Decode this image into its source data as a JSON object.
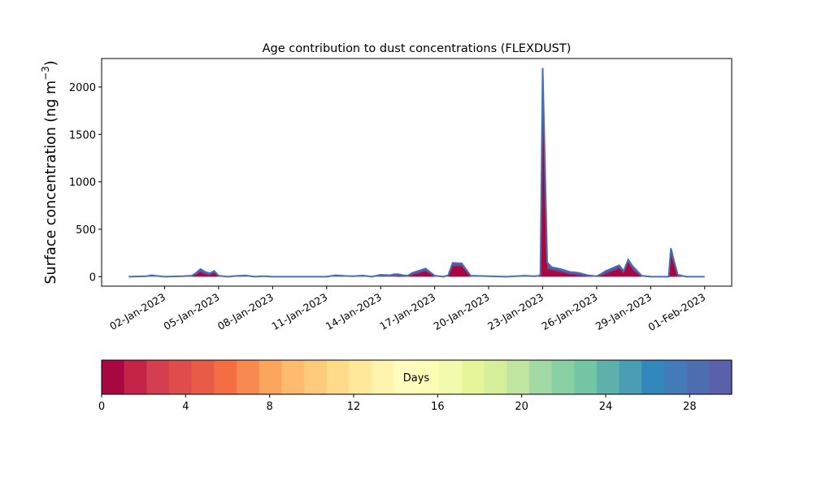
{
  "chart_data": {
    "type": "area",
    "title": "Age contribution to dust concentrations (FLEXDUST)",
    "ylabel": "Surface concentration (ng m",
    "ylabel_superscript": "−3",
    "ylabel_close": ")",
    "xlabel": "",
    "ylim": [
      -100,
      2300
    ],
    "yticks": [
      0,
      500,
      1000,
      1500,
      2000
    ],
    "xlim": [
      "2022-12-29T12:00",
      "2023-02-02T12:00"
    ],
    "xticks": [
      "02-Jan-2023",
      "05-Jan-2023",
      "08-Jan-2023",
      "11-Jan-2023",
      "14-Jan-2023",
      "17-Jan-2023",
      "20-Jan-2023",
      "23-Jan-2023",
      "26-Jan-2023",
      "29-Jan-2023",
      "01-Feb-2023"
    ],
    "grid": false,
    "series": [
      {
        "color": "#5e4fa2",
        "x": [
          "2022-12-31T00:00",
          "2023-01-01T00:00",
          "2023-01-01T06:00",
          "2023-01-02T00:00",
          "2023-01-03T00:00",
          "2023-01-03T12:00",
          "2023-01-03T18:00",
          "2023-01-04T00:00",
          "2023-01-04T06:00",
          "2023-01-04T12:00",
          "2023-01-04T18:00",
          "2023-01-05T00:00",
          "2023-01-05T12:00",
          "2023-01-06T00:00",
          "2023-01-06T12:00",
          "2023-01-07T00:00",
          "2023-01-07T12:00",
          "2023-01-08T00:00",
          "2023-01-09T00:00",
          "2023-01-10T00:00",
          "2023-01-11T00:00",
          "2023-01-11T12:00",
          "2023-01-12T00:00",
          "2023-01-12T12:00",
          "2023-01-13T00:00",
          "2023-01-13T12:00",
          "2023-01-14T00:00",
          "2023-01-14T12:00",
          "2023-01-14T18:00",
          "2023-01-15T00:00",
          "2023-01-15T06:00",
          "2023-01-15T12:00",
          "2023-01-15T18:00",
          "2023-01-16T00:00",
          "2023-01-16T12:00",
          "2023-01-17T00:00",
          "2023-01-17T12:00",
          "2023-01-17T18:00",
          "2023-01-18T00:00",
          "2023-01-18T12:00",
          "2023-01-19T00:00",
          "2023-01-20T00:00",
          "2023-01-21T00:00",
          "2023-01-22T00:00",
          "2023-01-22T12:00",
          "2023-01-22T18:00",
          "2023-01-22T21:00",
          "2023-01-23T00:00",
          "2023-01-23T03:00",
          "2023-01-23T06:00",
          "2023-01-23T12:00",
          "2023-01-24T00:00",
          "2023-01-24T12:00",
          "2023-01-25T00:00",
          "2023-01-25T12:00",
          "2023-01-26T00:00",
          "2023-01-26T06:00",
          "2023-01-26T12:00",
          "2023-01-26T18:00",
          "2023-01-27T00:00",
          "2023-01-27T06:00",
          "2023-01-27T12:00",
          "2023-01-27T18:00",
          "2023-01-28T00:00",
          "2023-01-28T12:00",
          "2023-01-29T00:00",
          "2023-01-29T12:00",
          "2023-01-29T18:00",
          "2023-01-30T00:00",
          "2023-01-30T03:00",
          "2023-01-30T06:00",
          "2023-01-30T12:00",
          "2023-01-31T00:00",
          "2023-02-01T00:00"
        ],
        "y": [
          0,
          0,
          5,
          0,
          0,
          10,
          30,
          75,
          55,
          40,
          65,
          0,
          0,
          0,
          5,
          0,
          0,
          0,
          0,
          0,
          0,
          10,
          5,
          0,
          10,
          0,
          20,
          5,
          10,
          20,
          0,
          0,
          20,
          20,
          0,
          0,
          10,
          5,
          0,
          0,
          0,
          0,
          0,
          0,
          10,
          0,
          0,
          0,
          0,
          0,
          0,
          0,
          0,
          0,
          0,
          0,
          10,
          5,
          0,
          0,
          0,
          0,
          0,
          0,
          0,
          0,
          0,
          0,
          0,
          0,
          0,
          0,
          0,
          0
        ]
      }
    ],
    "series_envelope": {
      "x_days_from_axis_start": [
        1.5,
        2.5,
        2.75,
        3.5,
        4.5,
        5.0,
        5.25,
        5.5,
        5.75,
        6.0,
        6.25,
        6.5,
        7.0,
        7.5,
        8.0,
        8.5,
        9.0,
        9.5,
        10.5,
        11.5,
        12.5,
        13.0,
        13.5,
        14.0,
        14.5,
        15.0,
        15.5,
        16.0,
        16.25,
        16.5,
        16.75,
        17.0,
        17.25,
        17.5,
        18.0,
        18.5,
        19.0,
        19.25,
        19.5,
        20.0,
        20.5,
        21.5,
        22.5,
        23.5,
        24.0,
        24.25,
        24.375,
        24.5,
        24.625,
        24.75,
        25.0,
        25.5,
        26.0,
        26.5,
        27.0,
        27.5,
        27.75,
        28.0,
        28.25,
        28.5,
        28.75,
        29.0,
        29.25,
        29.5,
        30.0,
        30.5,
        31.0,
        31.25,
        31.5,
        31.625,
        31.75,
        32.0,
        32.5,
        33.5
      ],
      "total": [
        0,
        5,
        15,
        0,
        5,
        10,
        40,
        80,
        50,
        35,
        60,
        10,
        0,
        8,
        12,
        0,
        5,
        0,
        0,
        0,
        0,
        15,
        8,
        5,
        12,
        0,
        20,
        15,
        25,
        25,
        15,
        10,
        40,
        55,
        85,
        10,
        0,
        15,
        145,
        140,
        10,
        5,
        0,
        10,
        5,
        8,
        20,
        2200,
        1200,
        150,
        100,
        80,
        50,
        40,
        15,
        5,
        30,
        60,
        80,
        100,
        120,
        60,
        180,
        110,
        10,
        0,
        0,
        0,
        0,
        300,
        200,
        20,
        0,
        0
      ],
      "age_0_1": [
        0,
        0,
        0,
        0,
        0,
        0,
        20,
        50,
        25,
        15,
        40,
        0,
        0,
        0,
        0,
        0,
        0,
        0,
        0,
        0,
        0,
        0,
        0,
        0,
        0,
        0,
        0,
        0,
        0,
        5,
        5,
        0,
        20,
        30,
        60,
        0,
        0,
        0,
        110,
        110,
        0,
        0,
        0,
        0,
        0,
        0,
        5,
        1900,
        950,
        80,
        70,
        50,
        25,
        15,
        5,
        0,
        10,
        30,
        50,
        65,
        90,
        35,
        150,
        70,
        0,
        0,
        0,
        0,
        0,
        250,
        150,
        5,
        0,
        0
      ]
    }
  },
  "colorbar": {
    "label": "Days",
    "ticks": [
      0,
      4,
      8,
      12,
      16,
      20,
      24,
      28
    ],
    "range": [
      0,
      30
    ],
    "colors": [
      "#a8083f",
      "#c52347",
      "#d53e4f",
      "#df4d4b",
      "#e85c47",
      "#f46d43",
      "#f88950",
      "#fca55d",
      "#feba6e",
      "#fdcb7b",
      "#fedb8a",
      "#fee99a",
      "#fff5ae",
      "#fffcbe",
      "#fbfdb5",
      "#f2faad",
      "#e6f598",
      "#d5ef9b",
      "#bfe5a0",
      "#a2d9a4",
      "#88cfa4",
      "#72c6a4",
      "#5db1aa",
      "#4a9eb3",
      "#3288bd",
      "#437ab8",
      "#4f6eb2",
      "#5a60a9"
    ]
  }
}
